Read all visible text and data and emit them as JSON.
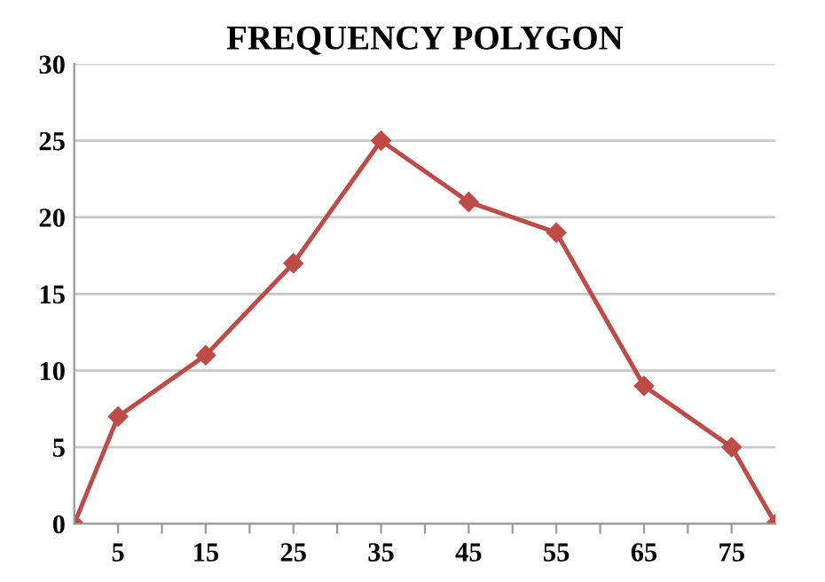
{
  "chart_data": {
    "type": "line",
    "title": "FREQUENCY POLYGON",
    "x": [
      0,
      5,
      15,
      25,
      35,
      45,
      55,
      65,
      75,
      80
    ],
    "series": [
      {
        "color": "#be4b48",
        "values": [
          0,
          7,
          11,
          17,
          25,
          21,
          19,
          9,
          5,
          0
        ]
      }
    ],
    "xlim": [
      0,
      80
    ],
    "xticks": [
      5,
      {
        "value": 10,
        "label": null
      },
      15,
      {
        "value": 20,
        "label": null
      },
      25,
      {
        "value": 30,
        "label": null
      },
      35,
      {
        "value": 40,
        "label": null
      },
      45,
      {
        "value": 50,
        "label": null
      },
      55,
      {
        "value": 60,
        "label": null
      },
      65,
      {
        "value": 70,
        "label": null
      },
      75
    ],
    "ylim": [
      0,
      30
    ],
    "yticks": [
      0,
      5,
      10,
      15,
      20,
      25,
      30
    ],
    "grid": "y",
    "marker": "diamond",
    "line_style": "solid"
  }
}
